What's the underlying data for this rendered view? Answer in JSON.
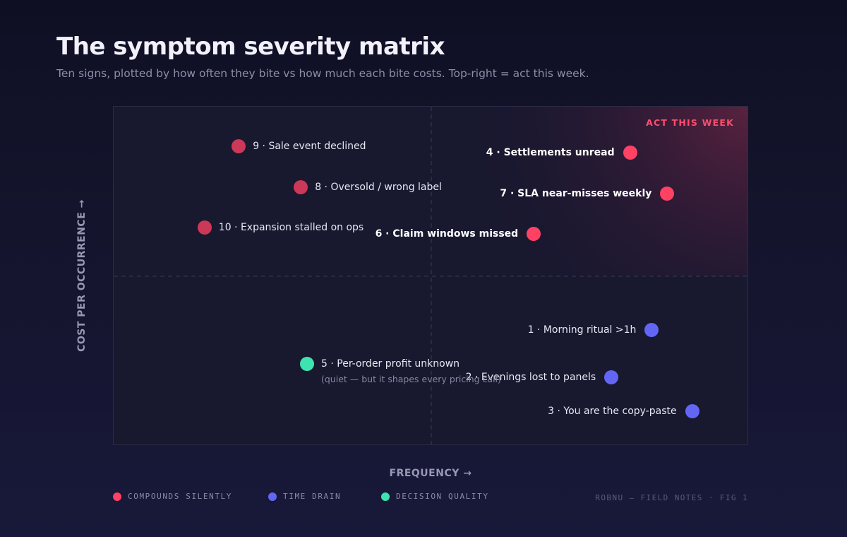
{
  "header": {
    "title": "The symptom severity matrix",
    "subtitle": "Ten signs, plotted by how often they bite vs how much each bite costs. Top-right = act this week."
  },
  "chart_data": {
    "type": "scatter",
    "title": "The symptom severity matrix",
    "xlabel": "FREQUENCY →",
    "ylabel": "COST PER OCCURRENCE →",
    "xlim": [
      0,
      10
    ],
    "ylim": [
      0,
      10
    ],
    "grid": false,
    "quadrant_dividers": {
      "x": 5,
      "y": 5
    },
    "zone": {
      "label": "ACT THIS WEEK",
      "position": "top-right"
    },
    "series": [
      {
        "name": "COMPOUNDS SILENTLY",
        "color": "#ff4164"
      },
      {
        "name": "TIME DRAIN",
        "color": "#6366f5"
      },
      {
        "name": "DECISION QUALITY",
        "color": "#3ee3b0"
      }
    ],
    "points": [
      {
        "label": "9 · Sale event declined",
        "x": 1.9,
        "y": 9.0,
        "series": "COMPOUNDS SILENTLY",
        "emphasis": false
      },
      {
        "label": "8 · Oversold / wrong label",
        "x": 2.9,
        "y": 7.75,
        "series": "COMPOUNDS SILENTLY",
        "emphasis": false
      },
      {
        "label": "10 · Expansion stalled on ops",
        "x": 1.35,
        "y": 6.5,
        "series": "COMPOUNDS SILENTLY",
        "emphasis": false
      },
      {
        "label": "4 · Settlements unread",
        "x": 8.2,
        "y": 8.8,
        "series": "COMPOUNDS SILENTLY",
        "emphasis": true
      },
      {
        "label": "7 · SLA near-misses weekly",
        "x": 8.8,
        "y": 7.55,
        "series": "COMPOUNDS SILENTLY",
        "emphasis": true
      },
      {
        "label": "6 · Claim windows missed",
        "x": 6.65,
        "y": 6.3,
        "series": "COMPOUNDS SILENTLY",
        "emphasis": true
      },
      {
        "label": "1 · Morning ritual >1h",
        "x": 8.55,
        "y": 3.35,
        "series": "TIME DRAIN",
        "emphasis": false
      },
      {
        "label": "2 · Evenings lost to panels",
        "x": 7.9,
        "y": 1.9,
        "series": "TIME DRAIN",
        "emphasis": false
      },
      {
        "label": "3 · You are the copy-paste",
        "x": 9.2,
        "y": 0.85,
        "series": "TIME DRAIN",
        "emphasis": false
      },
      {
        "label": "5 · Per-order profit unknown",
        "note": "(quiet — but it shapes every pricing call)",
        "x": 3.0,
        "y": 2.3,
        "series": "DECISION QUALITY",
        "emphasis": false
      }
    ]
  },
  "footer": {
    "credit": "ROBNU — FIELD NOTES · FIG 1"
  }
}
